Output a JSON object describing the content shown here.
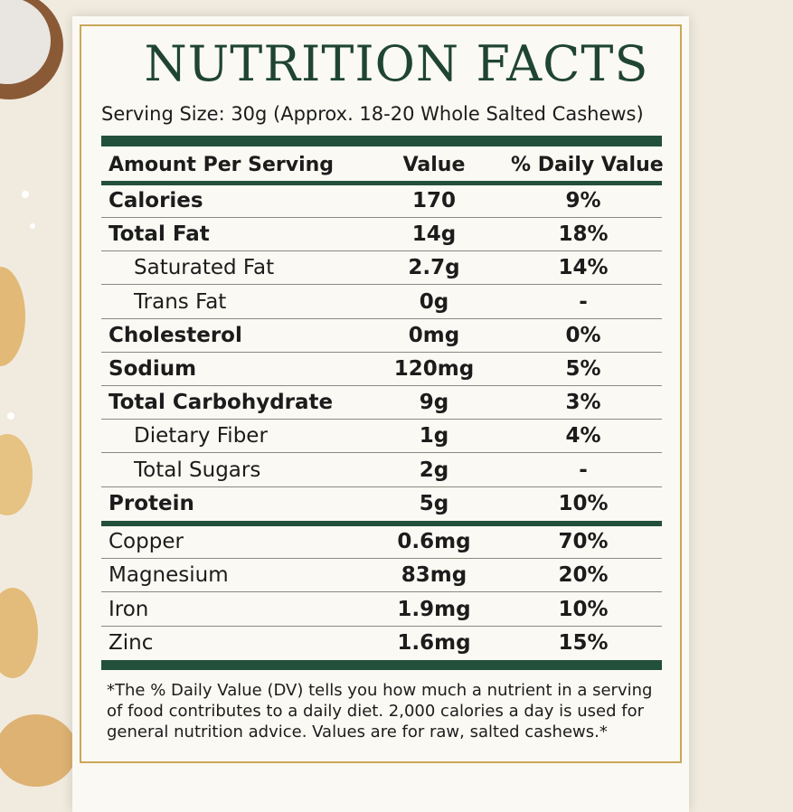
{
  "header": {
    "title": "NUTRITION FACTS",
    "serving_size": "Serving Size: 30g (Approx. 18-20 Whole Salted Cashews)"
  },
  "table": {
    "columns": [
      "Amount Per Serving",
      "Value",
      "% Daily Value"
    ],
    "rows": [
      [
        "Calories",
        "170",
        "9%"
      ],
      [
        "Total Fat",
        "14g",
        "18%"
      ],
      [
        "Saturated Fat",
        "2.7g",
        "14%"
      ],
      [
        "Trans Fat",
        "0g",
        "-"
      ],
      [
        "Cholesterol",
        "0mg",
        "0%"
      ],
      [
        "Sodium",
        "120mg",
        "5%"
      ],
      [
        "Total Carbohydrate",
        "9g",
        "3%"
      ],
      [
        "Dietary Fiber",
        "1g",
        "4%"
      ],
      [
        "Total Sugars",
        "2g",
        "-"
      ],
      [
        "Protein",
        "5g",
        "10%"
      ]
    ],
    "minerals": [
      [
        "Copper",
        "0.6mg",
        "70%"
      ],
      [
        "Magnesium",
        "83mg",
        "20%"
      ],
      [
        "Iron",
        "1.9mg",
        "10%"
      ],
      [
        "Zinc",
        "1.6mg",
        "15%"
      ]
    ]
  },
  "footnote": [
    "*The % Daily Value (DV) tells you how much a nutrient in a serving",
    "of food contributes to a daily diet. 2,000 calories a day is used for",
    "general nutrition advice. Values are for raw, salted cashews.*"
  ]
}
